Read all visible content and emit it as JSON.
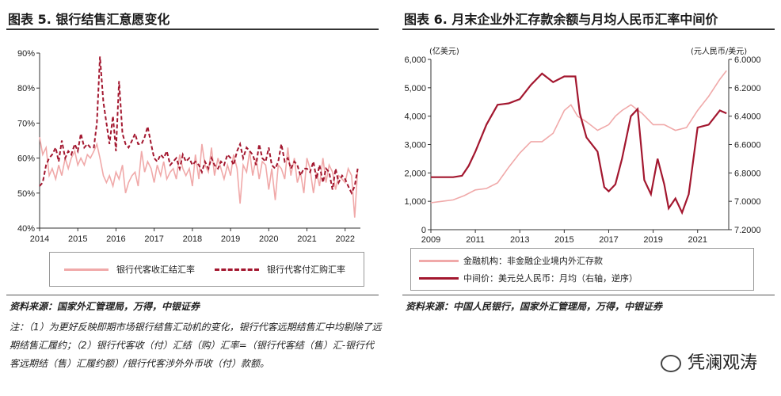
{
  "left": {
    "title": "图表 5. 银行结售汇意愿变化",
    "source": "资料来源：国家外汇管理局，万得，中银证券",
    "note": "注：（1）为更好反映即期市场银行结售汇动机的变化，银行代客远期结售汇中均剔除了远期结售汇履约；（2）银行代客收（付）汇结（购）汇率=（银行代客结（售）汇-银行代客远期结（售）汇履约额）/银行代客涉外外币收（付）款额。",
    "legend": [
      "银行代客收汇结汇率",
      "银行代客付汇购汇率"
    ]
  },
  "right": {
    "title": "图表 6. 月末企业外汇存款余额与月均人民币汇率中间价",
    "source": "资料来源：中国人民银行，国家外汇管理局，万得，中银证券",
    "unit_left": "(亿美元)",
    "unit_right": "(元人民币/美元)",
    "legend": [
      "金融机构：非金融企业境内外汇存款",
      "中间价：美元兑人民币：月均（右轴，逆序）"
    ]
  },
  "watermark": "凭澜观涛",
  "colors": {
    "pink": "#f0a9a9",
    "dark_red": "#a3172f",
    "rule": "#333333"
  },
  "chart_data": [
    {
      "type": "line",
      "x_ticks": [
        "2014",
        "2015",
        "2016",
        "2017",
        "2018",
        "2019",
        "2020",
        "2021",
        "2022"
      ],
      "y_ticks": [
        "40%",
        "50%",
        "60%",
        "70%",
        "80%",
        "90%"
      ],
      "ylim": [
        40,
        90
      ],
      "xlim": [
        2014.0,
        2022.4
      ],
      "series": [
        {
          "name": "银行代客收汇结汇率",
          "style": "solid",
          "color": "#f0a9a9",
          "x": [
            2014.0,
            2014.08,
            2014.17,
            2014.25,
            2014.33,
            2014.42,
            2014.5,
            2014.58,
            2014.67,
            2014.75,
            2014.83,
            2014.92,
            2015.0,
            2015.08,
            2015.17,
            2015.25,
            2015.33,
            2015.42,
            2015.5,
            2015.58,
            2015.67,
            2015.75,
            2015.83,
            2015.92,
            2016.0,
            2016.08,
            2016.17,
            2016.25,
            2016.33,
            2016.42,
            2016.5,
            2016.58,
            2016.67,
            2016.75,
            2016.83,
            2016.92,
            2017.0,
            2017.08,
            2017.17,
            2017.25,
            2017.33,
            2017.42,
            2017.5,
            2017.58,
            2017.67,
            2017.75,
            2017.83,
            2017.92,
            2018.0,
            2018.08,
            2018.17,
            2018.25,
            2018.33,
            2018.42,
            2018.5,
            2018.58,
            2018.67,
            2018.75,
            2018.83,
            2018.92,
            2019.0,
            2019.08,
            2019.17,
            2019.25,
            2019.33,
            2019.42,
            2019.5,
            2019.58,
            2019.67,
            2019.75,
            2019.83,
            2019.92,
            2020.0,
            2020.08,
            2020.17,
            2020.25,
            2020.33,
            2020.42,
            2020.5,
            2020.58,
            2020.67,
            2020.75,
            2020.83,
            2020.92,
            2021.0,
            2021.08,
            2021.17,
            2021.25,
            2021.33,
            2021.42,
            2021.5,
            2021.58,
            2021.67,
            2021.75,
            2021.83,
            2021.92,
            2022.0,
            2022.08,
            2022.17,
            2022.25,
            2022.33
          ],
          "values": [
            66,
            61,
            63,
            55,
            57,
            54,
            58,
            55,
            60,
            57,
            60,
            62,
            58,
            60,
            58,
            61,
            60,
            62,
            64,
            60,
            55,
            53,
            55,
            52,
            56,
            54,
            58,
            50,
            53,
            55,
            56,
            52,
            62,
            56,
            59,
            57,
            53,
            58,
            55,
            59,
            54,
            56,
            57,
            54,
            61,
            57,
            55,
            57,
            52,
            61,
            54,
            64,
            58,
            56,
            63,
            55,
            60,
            57,
            54,
            58,
            55,
            61,
            57,
            47,
            58,
            56,
            62,
            55,
            60,
            54,
            59,
            58,
            51,
            57,
            48,
            58,
            57,
            54,
            63,
            55,
            60,
            53,
            56,
            50,
            60,
            57,
            50,
            56,
            52,
            60,
            53,
            58,
            56,
            51,
            55,
            54,
            53,
            57,
            55,
            43,
            57
          ]
        },
        {
          "name": "银行代客付汇购汇率",
          "style": "dashed",
          "color": "#a3172f",
          "x": [
            2014.0,
            2014.08,
            2014.17,
            2014.25,
            2014.33,
            2014.42,
            2014.5,
            2014.58,
            2014.67,
            2014.75,
            2014.83,
            2014.92,
            2015.0,
            2015.08,
            2015.17,
            2015.25,
            2015.33,
            2015.42,
            2015.5,
            2015.58,
            2015.67,
            2015.75,
            2015.83,
            2015.92,
            2016.0,
            2016.08,
            2016.17,
            2016.25,
            2016.33,
            2016.42,
            2016.5,
            2016.58,
            2016.67,
            2016.75,
            2016.83,
            2016.92,
            2017.0,
            2017.08,
            2017.17,
            2017.25,
            2017.33,
            2017.42,
            2017.5,
            2017.58,
            2017.67,
            2017.75,
            2017.83,
            2017.92,
            2018.0,
            2018.08,
            2018.17,
            2018.25,
            2018.33,
            2018.42,
            2018.5,
            2018.58,
            2018.67,
            2018.75,
            2018.83,
            2018.92,
            2019.0,
            2019.08,
            2019.17,
            2019.25,
            2019.33,
            2019.42,
            2019.5,
            2019.58,
            2019.67,
            2019.75,
            2019.83,
            2019.92,
            2020.0,
            2020.08,
            2020.17,
            2020.25,
            2020.33,
            2020.42,
            2020.5,
            2020.58,
            2020.67,
            2020.75,
            2020.83,
            2020.92,
            2021.0,
            2021.08,
            2021.17,
            2021.25,
            2021.33,
            2021.42,
            2021.5,
            2021.58,
            2021.67,
            2021.75,
            2021.83,
            2021.92,
            2022.0,
            2022.08,
            2022.17,
            2022.25,
            2022.33
          ],
          "values": [
            52,
            53,
            58,
            60,
            61,
            63,
            59,
            65,
            60,
            62,
            61,
            64,
            62,
            67,
            63,
            64,
            63,
            63,
            70,
            89,
            76,
            70,
            64,
            72,
            62,
            82,
            67,
            64,
            63,
            65,
            67,
            64,
            64,
            66,
            69,
            64,
            60,
            59,
            61,
            60,
            62,
            58,
            59,
            60,
            57,
            61,
            59,
            60,
            58,
            59,
            58,
            56,
            59,
            57,
            60,
            58,
            57,
            59,
            58,
            61,
            60,
            58,
            62,
            64,
            60,
            63,
            62,
            61,
            58,
            64,
            60,
            59,
            63,
            58,
            57,
            59,
            64,
            59,
            60,
            57,
            59,
            58,
            55,
            57,
            57,
            56,
            59,
            54,
            58,
            53,
            57,
            56,
            51,
            57,
            53,
            55,
            54,
            52,
            50,
            52,
            57
          ]
        }
      ]
    },
    {
      "type": "line",
      "x_ticks": [
        "2009",
        "2011",
        "2013",
        "2015",
        "2017",
        "2019",
        "2021"
      ],
      "y_left_ticks": [
        "0",
        "1,000",
        "2,000",
        "3,000",
        "4,000",
        "5,000",
        "6,000"
      ],
      "y_right_ticks": [
        "6.0000",
        "6.2000",
        "6.4000",
        "6.6000",
        "6.8000",
        "7.0000",
        "7.2000"
      ],
      "ylim_left": [
        0,
        6000
      ],
      "ylim_right_reversed": [
        6.0,
        7.2
      ],
      "xlim": [
        2009.0,
        2022.4
      ],
      "series": [
        {
          "name": "金融机构：非金融企业境内外汇存款",
          "axis": "left",
          "color": "#f0a9a9",
          "x": [
            2009.0,
            2009.5,
            2010.0,
            2010.5,
            2011.0,
            2011.5,
            2012.0,
            2012.5,
            2013.0,
            2013.5,
            2014.0,
            2014.5,
            2015.0,
            2015.3,
            2015.6,
            2016.0,
            2016.5,
            2017.0,
            2017.3,
            2017.6,
            2018.0,
            2018.5,
            2019.0,
            2019.5,
            2020.0,
            2020.5,
            2021.0,
            2021.5,
            2022.0,
            2022.3
          ],
          "values": [
            950,
            1000,
            1050,
            1200,
            1400,
            1450,
            1650,
            2200,
            2700,
            3100,
            3100,
            3400,
            4200,
            4400,
            4000,
            3800,
            3500,
            3700,
            4000,
            4200,
            4400,
            4100,
            3700,
            3700,
            3500,
            3600,
            4200,
            4700,
            5300,
            5600
          ]
        },
        {
          "name": "中间价：美元兑人民币：月均（右轴，逆序）",
          "axis": "right",
          "color": "#a3172f",
          "x": [
            2009.0,
            2009.5,
            2010.0,
            2010.4,
            2010.7,
            2011.0,
            2011.5,
            2012.0,
            2012.5,
            2013.0,
            2013.5,
            2014.0,
            2014.5,
            2015.0,
            2015.5,
            2015.7,
            2016.0,
            2016.5,
            2016.8,
            2017.0,
            2017.3,
            2017.6,
            2018.0,
            2018.3,
            2018.6,
            2018.9,
            2019.2,
            2019.5,
            2019.7,
            2020.0,
            2020.3,
            2020.6,
            2021.0,
            2021.5,
            2022.0,
            2022.3
          ],
          "values": [
            6.83,
            6.83,
            6.83,
            6.82,
            6.75,
            6.65,
            6.46,
            6.32,
            6.31,
            6.28,
            6.18,
            6.1,
            6.16,
            6.12,
            6.12,
            6.38,
            6.55,
            6.65,
            6.9,
            6.93,
            6.88,
            6.7,
            6.4,
            6.35,
            6.85,
            6.95,
            6.7,
            6.88,
            7.05,
            6.98,
            7.08,
            6.95,
            6.48,
            6.46,
            6.36,
            6.38
          ]
        }
      ]
    }
  ]
}
